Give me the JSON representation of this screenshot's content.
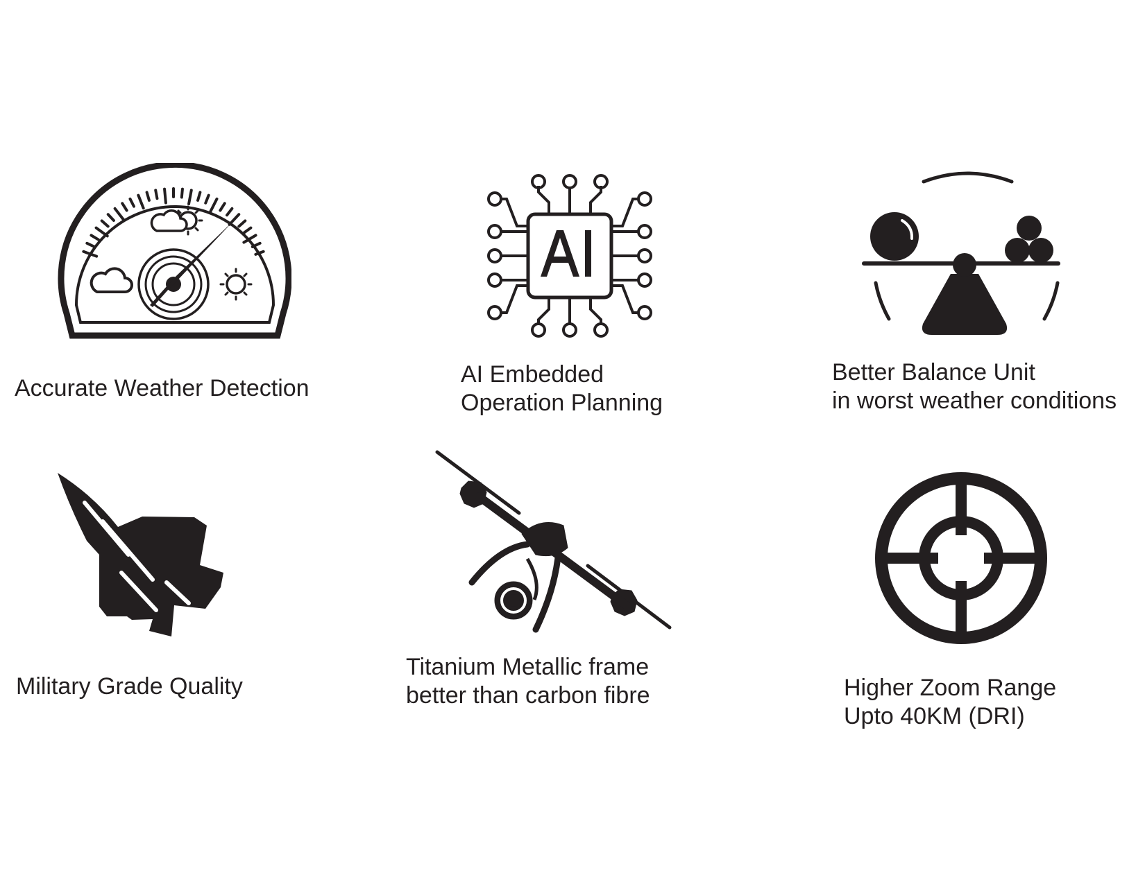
{
  "features": [
    {
      "id": "weather",
      "icon": "weather-gauge-icon",
      "lines": [
        "Accurate Weather Detection"
      ]
    },
    {
      "id": "ai",
      "icon": "ai-chip-icon",
      "lines": [
        "AI Embedded",
        "Operation Planning"
      ]
    },
    {
      "id": "balance",
      "icon": "balance-scale-icon",
      "lines": [
        "Better Balance Unit",
        "in worst weather conditions"
      ]
    },
    {
      "id": "military",
      "icon": "fighter-jet-icon",
      "lines": [
        "Military Grade Quality"
      ]
    },
    {
      "id": "frame",
      "icon": "drone-icon",
      "lines": [
        "Titanium Metallic frame",
        "better than carbon fibre"
      ]
    },
    {
      "id": "zoom",
      "icon": "crosshair-target-icon",
      "lines": [
        "Higher Zoom Range",
        "Upto 40KM (DRI)"
      ]
    }
  ],
  "colors": {
    "ink": "#231f20",
    "background": "#ffffff"
  }
}
